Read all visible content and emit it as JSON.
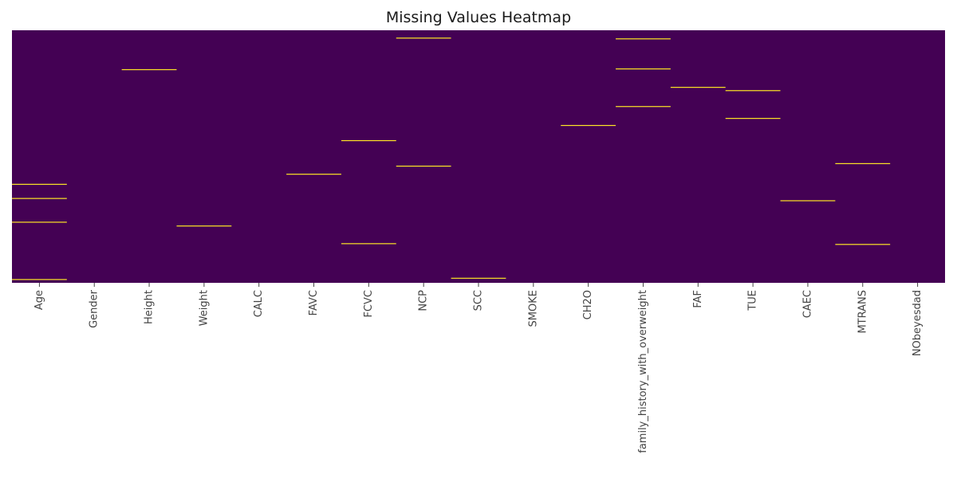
{
  "chart_data": {
    "type": "heatmap",
    "title": "Missing Values Heatmap",
    "xlabel": "",
    "ylabel": "",
    "columns": [
      "Age",
      "Gender",
      "Height",
      "Weight",
      "CALC",
      "FAVC",
      "FCVC",
      "NCP",
      "SCC",
      "SMOKE",
      "CH2O",
      "family_history_with_overweight",
      "FAF",
      "TUE",
      "CAEC",
      "MTRANS",
      "NObeyesdad"
    ],
    "row_count_estimate": 1000,
    "missing_row_fractions": {
      "Age": [
        0.61,
        0.666,
        0.76,
        0.987
      ],
      "Gender": [],
      "Height": [
        0.156
      ],
      "Weight": [
        0.775
      ],
      "CALC": [],
      "FAVC": [
        0.57
      ],
      "FCVC": [
        0.437,
        0.845
      ],
      "NCP": [
        0.031,
        0.538
      ],
      "SCC": [
        0.982
      ],
      "SMOKE": [],
      "CH2O": [
        0.377
      ],
      "family_history_with_overweight": [
        0.034,
        0.153,
        0.302
      ],
      "FAF": [
        0.226
      ],
      "TUE": [
        0.239,
        0.349
      ],
      "CAEC": [
        0.675
      ],
      "MTRANS": [
        0.528,
        0.848
      ],
      "NObeyesdad": []
    },
    "colorbar": false,
    "grid": false,
    "colors": {
      "present": "#440154",
      "missing": "#fde725"
    }
  }
}
